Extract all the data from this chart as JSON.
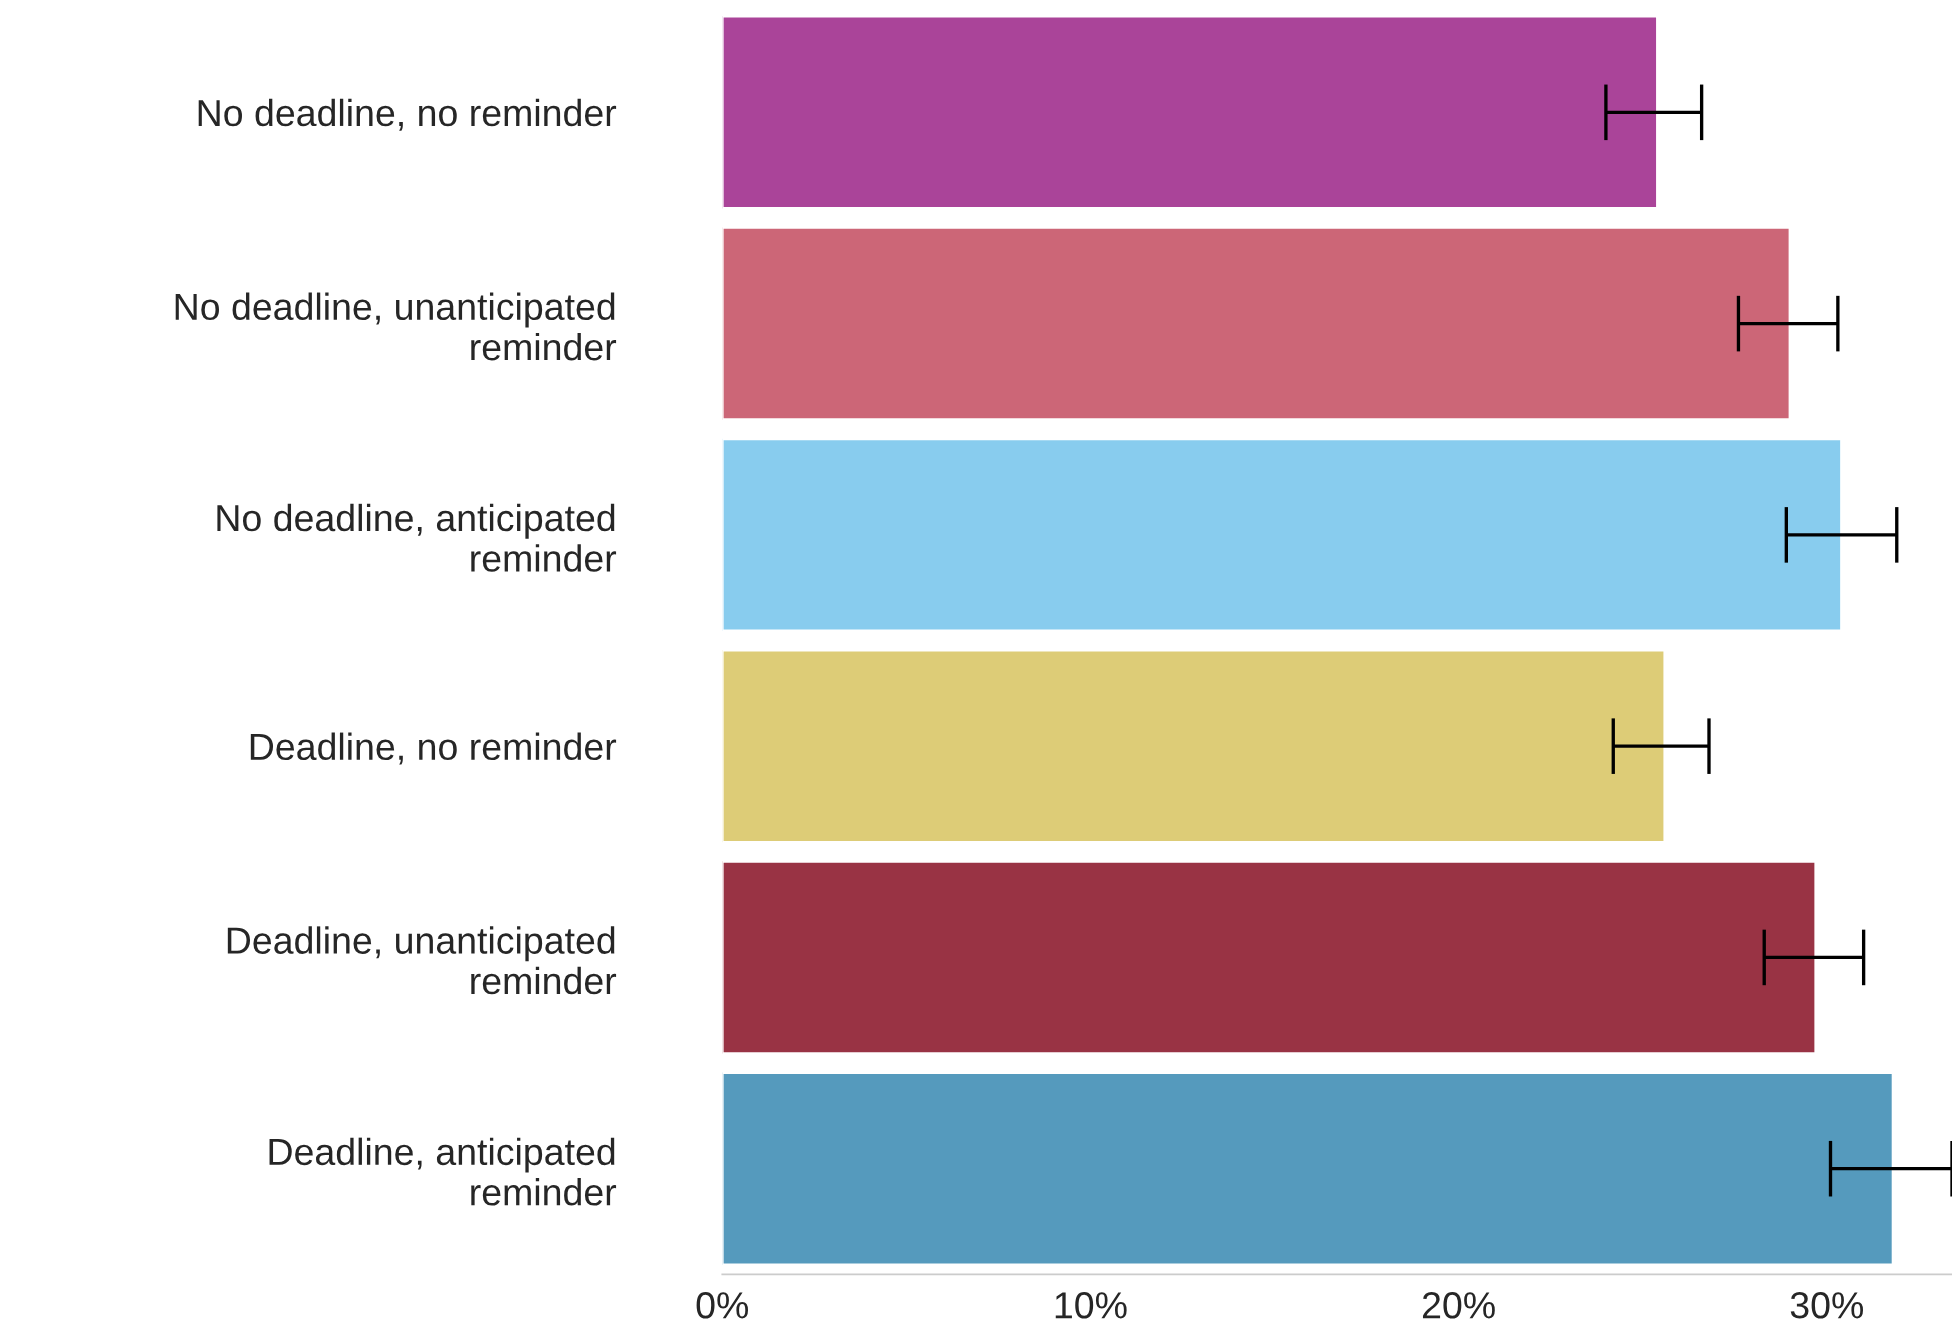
{
  "chart_data": {
    "type": "bar",
    "orientation": "horizontal",
    "categories": [
      "No deadline, no reminder",
      "No deadline, unanticipated\nreminder",
      "No deadline, anticipated\nreminder",
      "Deadline, no reminder",
      "Deadline, unanticipated\nreminder",
      "Deadline, anticipated\nreminder"
    ],
    "values": [
      25.4,
      29.0,
      30.4,
      25.6,
      29.7,
      31.8
    ],
    "colors": [
      "#aa4499",
      "#cc6677",
      "#88ccee",
      "#ddcc77",
      "#993344",
      "#559abd"
    ],
    "errors": [
      [
        24.0,
        26.6
      ],
      [
        27.6,
        30.3
      ],
      [
        28.9,
        31.9
      ],
      [
        24.2,
        26.8
      ],
      [
        28.3,
        31.0
      ],
      [
        30.1,
        33.4
      ]
    ],
    "xlim": [
      0,
      33.4
    ],
    "xticks": [
      {
        "value": 0,
        "label": "0%"
      },
      {
        "value": 10,
        "label": "10%"
      },
      {
        "value": 20,
        "label": "20%"
      },
      {
        "value": 30,
        "label": "30%"
      }
    ],
    "grid": false,
    "legend": false
  }
}
